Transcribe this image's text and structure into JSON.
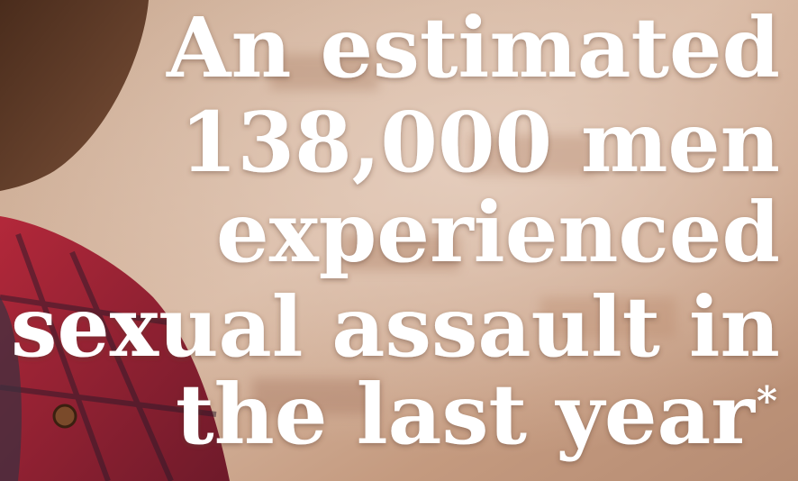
{
  "headline": {
    "lines": [
      "An estimated",
      "138,000 men",
      "experienced",
      "sexual assault in",
      "the last year"
    ],
    "footnote_marker": "*"
  }
}
